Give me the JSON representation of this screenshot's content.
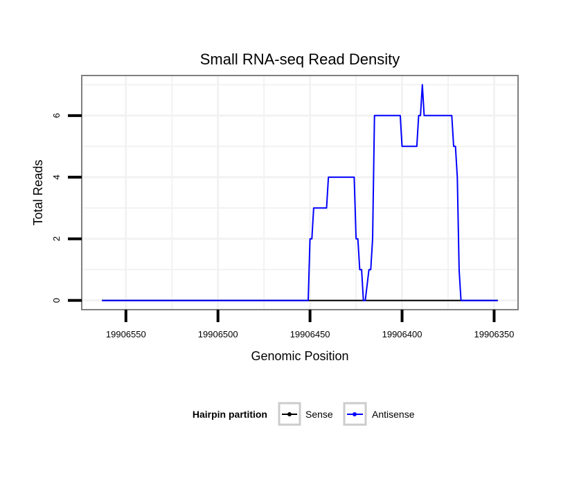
{
  "chart_data": {
    "type": "line",
    "title": "Small RNA-seq Read Density",
    "xlabel": "Genomic Position",
    "ylabel": "Total Reads",
    "x_reversed": true,
    "xlim": [
      19906574,
      19906337
    ],
    "ylim": [
      -0.3,
      7.3
    ],
    "x_ticks": [
      19906550,
      19906500,
      19906450,
      19906400,
      19906350
    ],
    "x_tick_labels": [
      "19906550",
      "19906500",
      "19906450",
      "19906400",
      "19906350"
    ],
    "y_ticks": [
      0,
      2,
      4,
      6
    ],
    "y_tick_labels": [
      "0",
      "2",
      "4",
      "6"
    ],
    "grid": true,
    "legend": {
      "title": "Hairpin partition",
      "position": "bottom",
      "entries": [
        "Sense",
        "Antisense"
      ]
    },
    "series": [
      {
        "name": "Sense",
        "color": "#000000",
        "x": [
          19906563,
          19906348
        ],
        "y": [
          0,
          0
        ]
      },
      {
        "name": "Antisense",
        "color": "#0000ff",
        "x": [
          19906563,
          19906451,
          19906450,
          19906449,
          19906448,
          19906441,
          19906440,
          19906426,
          19906425,
          19906424,
          19906423,
          19906422,
          19906421,
          19906420,
          19906418,
          19906417,
          19906416,
          19906415,
          19906414,
          19906413,
          19906401,
          19906400,
          19906392,
          19906391,
          19906390,
          19906389,
          19906388,
          19906387,
          19906373,
          19906372,
          19906371,
          19906370,
          19906369,
          19906368,
          19906348
        ],
        "y": [
          0,
          0,
          2,
          2,
          3,
          3,
          4,
          4,
          2,
          2,
          1,
          1,
          0,
          0,
          1,
          1,
          2,
          6,
          6,
          6,
          6,
          5,
          5,
          6,
          6,
          7,
          6,
          6,
          6,
          5,
          5,
          4,
          1,
          0,
          0
        ]
      }
    ]
  }
}
